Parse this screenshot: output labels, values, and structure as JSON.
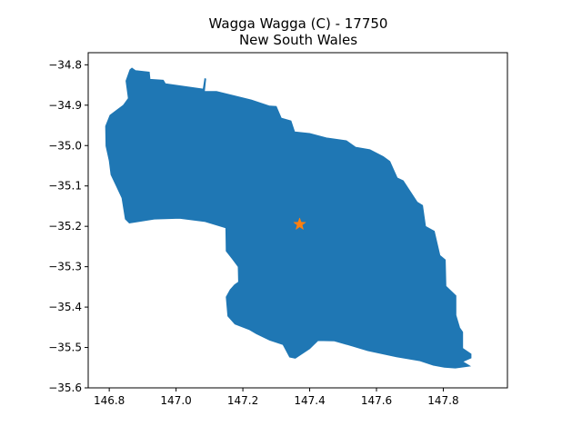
{
  "title_line1": "Wagga Wagga (C) - 17750",
  "title_line2": "New South Wales",
  "colors": {
    "region_fill": "#1f77b4",
    "marker": "#ff7f0e",
    "axis": "#000000",
    "background": "#ffffff"
  },
  "chart_data": {
    "type": "map",
    "x_ticks": [
      "146.8",
      "147.0",
      "147.2",
      "147.4",
      "147.6",
      "147.8"
    ],
    "x_tick_values": [
      146.8,
      147.0,
      147.2,
      147.4,
      147.6,
      147.8
    ],
    "y_ticks": [
      "−34.8",
      "−34.9",
      "−35.0",
      "−35.1",
      "−35.2",
      "−35.3",
      "−35.4",
      "−35.5",
      "−35.6"
    ],
    "y_tick_values": [
      -34.8,
      -34.9,
      -35.0,
      -35.1,
      -35.2,
      -35.3,
      -35.4,
      -35.5,
      -35.6
    ],
    "xlim": [
      146.737,
      147.992
    ],
    "ylim": [
      -35.6,
      -34.77
    ],
    "grid": false,
    "marker": {
      "shape": "star",
      "lon": 147.37,
      "lat": -35.195
    },
    "boundary": [
      [
        146.868,
        -34.808
      ],
      [
        146.878,
        -34.814
      ],
      [
        146.92,
        -34.818
      ],
      [
        146.922,
        -34.836
      ],
      [
        146.962,
        -34.838
      ],
      [
        146.968,
        -34.847
      ],
      [
        147.081,
        -34.86
      ],
      [
        147.086,
        -34.834
      ],
      [
        147.089,
        -34.835
      ],
      [
        147.085,
        -34.866
      ],
      [
        147.121,
        -34.866
      ],
      [
        147.225,
        -34.887
      ],
      [
        147.28,
        -34.902
      ],
      [
        147.3,
        -34.903
      ],
      [
        147.315,
        -34.932
      ],
      [
        147.344,
        -34.939
      ],
      [
        147.355,
        -34.966
      ],
      [
        147.4,
        -34.97
      ],
      [
        147.45,
        -34.981
      ],
      [
        147.51,
        -34.988
      ],
      [
        147.537,
        -35.004
      ],
      [
        147.58,
        -35.01
      ],
      [
        147.62,
        -35.027
      ],
      [
        147.64,
        -35.039
      ],
      [
        147.662,
        -35.08
      ],
      [
        147.68,
        -35.087
      ],
      [
        147.722,
        -35.14
      ],
      [
        147.738,
        -35.148
      ],
      [
        147.747,
        -35.2
      ],
      [
        147.773,
        -35.212
      ],
      [
        147.79,
        -35.272
      ],
      [
        147.806,
        -35.283
      ],
      [
        147.808,
        -35.348
      ],
      [
        147.838,
        -35.372
      ],
      [
        147.838,
        -35.42
      ],
      [
        147.849,
        -35.451
      ],
      [
        147.858,
        -35.462
      ],
      [
        147.858,
        -35.502
      ],
      [
        147.883,
        -35.516
      ],
      [
        147.883,
        -35.526
      ],
      [
        147.858,
        -35.535
      ],
      [
        147.88,
        -35.546
      ],
      [
        147.836,
        -35.551
      ],
      [
        147.803,
        -35.549
      ],
      [
        147.77,
        -35.544
      ],
      [
        147.73,
        -35.533
      ],
      [
        147.7,
        -35.529
      ],
      [
        147.66,
        -35.523
      ],
      [
        147.62,
        -35.516
      ],
      [
        147.574,
        -35.508
      ],
      [
        147.53,
        -35.497
      ],
      [
        147.474,
        -35.484
      ],
      [
        147.425,
        -35.483
      ],
      [
        147.4,
        -35.503
      ],
      [
        147.357,
        -35.527
      ],
      [
        147.34,
        -35.524
      ],
      [
        147.32,
        -35.493
      ],
      [
        147.28,
        -35.482
      ],
      [
        147.24,
        -35.466
      ],
      [
        147.22,
        -35.456
      ],
      [
        147.176,
        -35.442
      ],
      [
        147.155,
        -35.422
      ],
      [
        147.15,
        -35.375
      ],
      [
        147.162,
        -35.357
      ],
      [
        147.175,
        -35.345
      ],
      [
        147.187,
        -35.338
      ],
      [
        147.186,
        -35.3
      ],
      [
        147.168,
        -35.28
      ],
      [
        147.15,
        -35.261
      ],
      [
        147.149,
        -35.204
      ],
      [
        147.085,
        -35.188
      ],
      [
        147.01,
        -35.18
      ],
      [
        146.935,
        -35.182
      ],
      [
        146.86,
        -35.192
      ],
      [
        146.848,
        -35.182
      ],
      [
        146.838,
        -35.13
      ],
      [
        146.821,
        -35.1
      ],
      [
        146.805,
        -35.072
      ],
      [
        146.8,
        -35.038
      ],
      [
        146.79,
        -35.001
      ],
      [
        146.789,
        -34.952
      ],
      [
        146.802,
        -34.925
      ],
      [
        146.842,
        -34.9
      ],
      [
        146.857,
        -34.883
      ],
      [
        146.85,
        -34.84
      ],
      [
        146.862,
        -34.812
      ]
    ]
  }
}
